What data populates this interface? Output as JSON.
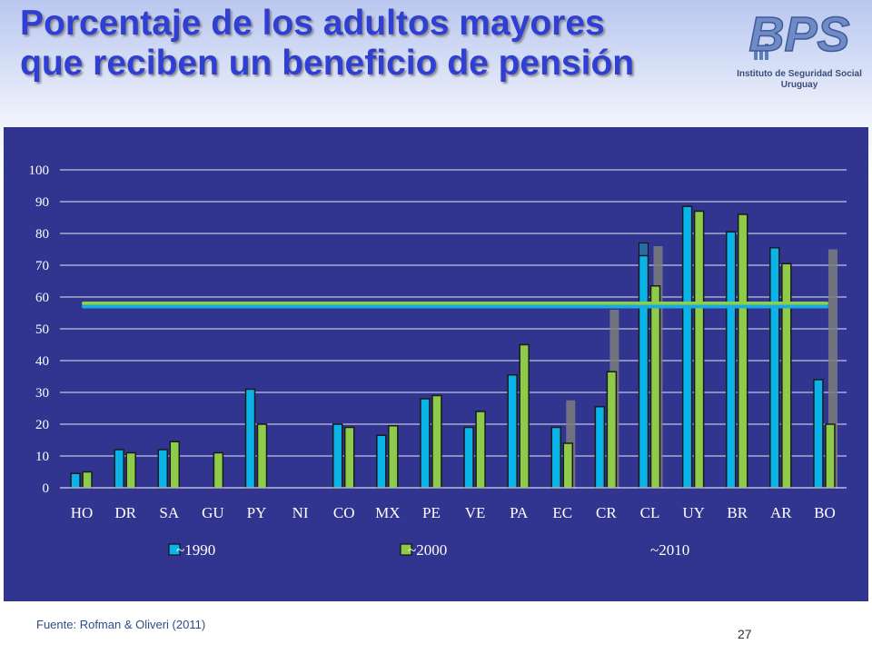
{
  "title": {
    "line1": "Porcentaje de los adultos mayores",
    "line2": "que reciben un beneficio de pensión"
  },
  "logo": {
    "text": "BPS",
    "subtitle_line1": "Instituto de Seguridad Social",
    "subtitle_line2": "Uruguay"
  },
  "footer": {
    "source": "Fuente: Rofman & Oliveri (2011)",
    "page_number": "27"
  },
  "colors": {
    "panel_background": "#31358f",
    "series_1990": "#0ab4e8",
    "series_2000": "#8ecb4a",
    "series_2010": "#7c7c7c",
    "average_line_1990": "#1ba9e2",
    "average_line_2000": "#8ed04a"
  },
  "chart_data": {
    "type": "bar",
    "title": "",
    "xlabel": "",
    "ylabel": "",
    "ylim": [
      0,
      100
    ],
    "yticks": [
      0,
      10,
      20,
      30,
      40,
      50,
      60,
      70,
      80,
      90,
      100
    ],
    "grid": true,
    "legend_position": "bottom",
    "categories": [
      "HO",
      "DR",
      "SA",
      "GU",
      "PY",
      "NI",
      "CO",
      "MX",
      "PE",
      "VE",
      "PA",
      "EC",
      "CR",
      "CL",
      "UY",
      "BR",
      "AR",
      "BO"
    ],
    "series": [
      {
        "name": "~1990",
        "values": [
          4.5,
          12,
          12,
          0,
          31,
          0,
          20,
          16.5,
          28,
          19,
          35.5,
          19,
          25.5,
          73,
          88.5,
          80.5,
          75.5,
          34
        ]
      },
      {
        "name": "~2000",
        "values": [
          5,
          11,
          14.5,
          11,
          20,
          0,
          19,
          19.5,
          29,
          24,
          45,
          14,
          36.5,
          63.5,
          87,
          86,
          70.5,
          20
        ]
      },
      {
        "name": "~2010",
        "values": [
          null,
          null,
          null,
          null,
          null,
          null,
          null,
          null,
          null,
          null,
          null,
          27.5,
          56,
          76,
          null,
          null,
          null,
          75
        ]
      }
    ],
    "extra_marks": [
      {
        "category": "CL",
        "series": "~1990",
        "value": 77
      }
    ],
    "reference_lines": [
      {
        "series": "~1990",
        "value": 57
      },
      {
        "series": "~2000",
        "value": 58
      }
    ]
  }
}
